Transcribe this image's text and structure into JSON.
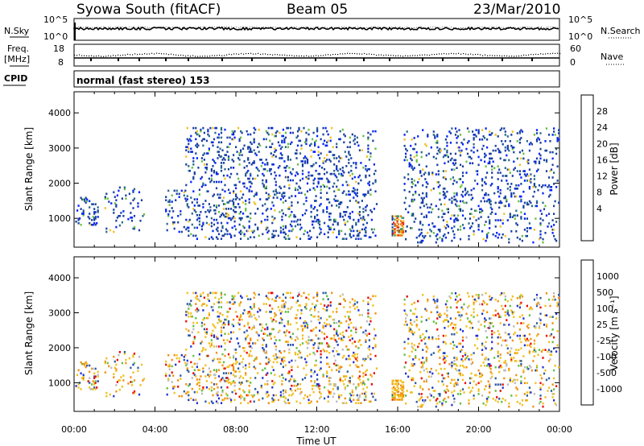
{
  "header": {
    "title": "Syowa South (fitACF)",
    "beam": "Beam 05",
    "date": "23/Mar/2010"
  },
  "top_panels": {
    "nsky_label": "N.Sky",
    "nsearch_label": "N.Search",
    "nsky_ticks": [
      "10^5",
      "10^0"
    ],
    "nsearch_ticks": [
      "10^5",
      "10^0"
    ],
    "freq_label": "Freq.",
    "freq_unit": "[MHz]",
    "freq_ticks": [
      "18",
      "8"
    ],
    "nave_label": "Nave",
    "nave_ticks": [
      "60",
      "0"
    ],
    "cpid_label": "CPID",
    "cpid_text": "normal (fast stereo) 153"
  },
  "chart_data": [
    {
      "type": "heatmap",
      "name": "power",
      "ylabel": "Slant Range [km]",
      "xlabel": "Time UT",
      "yticks": [
        1000,
        2000,
        3000,
        4000
      ],
      "ylim": [
        180,
        4600
      ],
      "xlim": [
        0,
        24
      ],
      "colorbar": {
        "label": "Power [dB]",
        "ticks": [
          "28",
          "24",
          "20",
          "16",
          "12",
          "8",
          "4"
        ],
        "colors": [
          "#0022ff",
          "#1840a0",
          "#2a6a8a",
          "#3a9a70",
          "#66c040",
          "#f0c020",
          "#f08010",
          "#e83010",
          "#ee0000"
        ]
      },
      "echo_clusters": [
        {
          "t0": 0.0,
          "t1": 1.2,
          "r0": 800,
          "r1": 1600,
          "density": 0.25
        },
        {
          "t0": 1.5,
          "t1": 3.5,
          "r0": 600,
          "r1": 1900,
          "density": 0.1
        },
        {
          "t0": 4.5,
          "t1": 5.5,
          "r0": 600,
          "r1": 1800,
          "density": 0.15
        },
        {
          "t0": 5.5,
          "t1": 15.0,
          "r0": 400,
          "r1": 3600,
          "density": 0.18
        },
        {
          "t0": 15.7,
          "t1": 16.3,
          "r0": 500,
          "r1": 1100,
          "density": 0.8
        },
        {
          "t0": 16.3,
          "t1": 24.0,
          "r0": 300,
          "r1": 3600,
          "density": 0.15
        }
      ]
    },
    {
      "type": "heatmap",
      "name": "velocity",
      "ylabel": "Slant Range [km]",
      "xlabel": "Time UT",
      "xticks": [
        "00:00",
        "04:00",
        "08:00",
        "12:00",
        "16:00",
        "20:00",
        "00:00"
      ],
      "yticks": [
        1000,
        2000,
        3000,
        4000
      ],
      "ylim": [
        180,
        4600
      ],
      "xlim": [
        0,
        24
      ],
      "colorbar": {
        "label": "Velocity [m s⁻¹]",
        "ticks": [
          "1000",
          "500",
          "100",
          "25",
          "-25",
          "-100",
          "-500",
          "-1000"
        ],
        "colors": [
          "#2030d0",
          "#2a5aa0",
          "#3a8a70",
          "#60c040",
          "#bbbbbb",
          "#f0c020",
          "#f09010",
          "#f05010",
          "#ee0000"
        ]
      }
    }
  ]
}
